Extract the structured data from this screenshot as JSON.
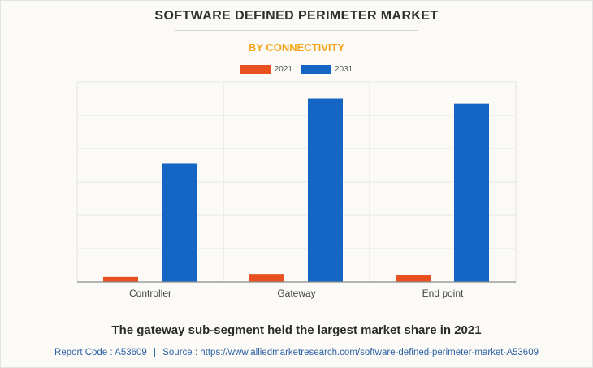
{
  "header": {
    "title": "SOFTWARE DEFINED PERIMETER MARKET",
    "subtitle": "BY CONNECTIVITY"
  },
  "colors": {
    "series_2021": "#e8501f",
    "series_2031": "#1565c4",
    "subtitle": "#f4a51c",
    "footer": "#2f63a6"
  },
  "chart_data": {
    "type": "bar",
    "title": "SOFTWARE DEFINED PERIMETER MARKET",
    "subtitle": "BY CONNECTIVITY",
    "categories": [
      "Controller",
      "Gateway",
      "End point"
    ],
    "series": [
      {
        "name": "2021",
        "values": [
          1.5,
          2.4,
          2.1
        ]
      },
      {
        "name": "2031",
        "values": [
          35.5,
          55.0,
          53.5
        ]
      }
    ],
    "ylim": [
      0,
      60
    ],
    "xlabel": "",
    "ylabel": "",
    "grid": true,
    "legend": "top-center"
  },
  "caption": "The gateway sub-segment held the largest market share in 2021",
  "footer": {
    "report_code": "Report Code : A53609",
    "separator": "|",
    "source": "Source : https://www.alliedmarketresearch.com/software-defined-perimeter-market-A53609"
  }
}
